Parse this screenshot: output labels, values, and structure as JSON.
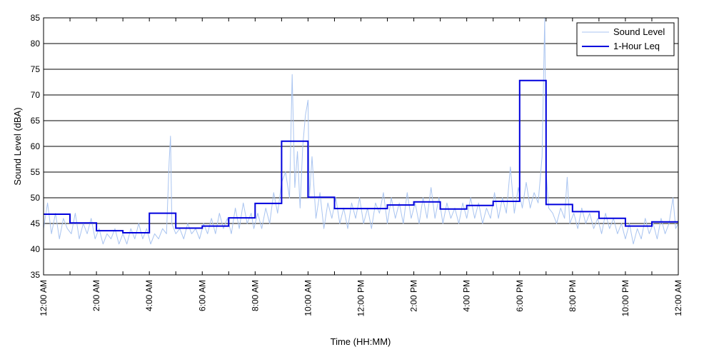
{
  "chart_data": {
    "type": "line",
    "xlabel": "Time (HH:MM)",
    "ylabel": "Sound Level (dBA)",
    "ylim": [
      35,
      85
    ],
    "yticks": [
      35,
      40,
      45,
      50,
      55,
      60,
      65,
      70,
      75,
      80,
      85
    ],
    "xlim_hours": [
      0,
      24
    ],
    "xtick_labels": [
      "12:00 AM",
      "2:00 AM",
      "4:00 AM",
      "6:00 AM",
      "8:00 AM",
      "10:00 AM",
      "12:00 PM",
      "2:00 PM",
      "4:00 PM",
      "6:00 PM",
      "8:00 PM",
      "10:00 PM",
      "12:00 AM"
    ],
    "grid": "horizontal",
    "legend_position": "top-right",
    "series": [
      {
        "name": "Sound Level",
        "color": "#a9c4f0",
        "style": "thin-line",
        "points": [
          [
            0.0,
            44
          ],
          [
            0.15,
            49
          ],
          [
            0.3,
            43
          ],
          [
            0.45,
            47
          ],
          [
            0.6,
            42
          ],
          [
            0.75,
            46
          ],
          [
            0.9,
            44
          ],
          [
            1.05,
            43
          ],
          [
            1.2,
            47
          ],
          [
            1.35,
            42
          ],
          [
            1.5,
            45
          ],
          [
            1.65,
            43
          ],
          [
            1.8,
            46
          ],
          [
            1.95,
            42
          ],
          [
            2.1,
            44
          ],
          [
            2.25,
            41
          ],
          [
            2.4,
            43
          ],
          [
            2.55,
            42
          ],
          [
            2.7,
            44
          ],
          [
            2.85,
            41
          ],
          [
            3.0,
            43
          ],
          [
            3.15,
            41
          ],
          [
            3.3,
            44
          ],
          [
            3.45,
            42
          ],
          [
            3.6,
            45
          ],
          [
            3.75,
            42
          ],
          [
            3.9,
            44
          ],
          [
            4.05,
            41
          ],
          [
            4.2,
            43
          ],
          [
            4.35,
            42
          ],
          [
            4.5,
            44
          ],
          [
            4.65,
            43
          ],
          [
            4.75,
            57
          ],
          [
            4.8,
            62
          ],
          [
            4.85,
            45
          ],
          [
            5.0,
            43
          ],
          [
            5.15,
            44
          ],
          [
            5.3,
            42
          ],
          [
            5.45,
            45
          ],
          [
            5.6,
            43
          ],
          [
            5.75,
            44
          ],
          [
            5.9,
            42
          ],
          [
            6.05,
            45
          ],
          [
            6.2,
            43
          ],
          [
            6.35,
            46
          ],
          [
            6.5,
            43
          ],
          [
            6.65,
            47
          ],
          [
            6.8,
            44
          ],
          [
            6.95,
            46
          ],
          [
            7.1,
            43
          ],
          [
            7.25,
            48
          ],
          [
            7.4,
            44
          ],
          [
            7.55,
            49
          ],
          [
            7.7,
            45
          ],
          [
            7.85,
            47
          ],
          [
            7.95,
            44
          ],
          [
            8.1,
            47
          ],
          [
            8.25,
            44
          ],
          [
            8.4,
            48
          ],
          [
            8.55,
            45
          ],
          [
            8.7,
            51
          ],
          [
            8.85,
            47
          ],
          [
            9.0,
            53
          ],
          [
            9.15,
            55
          ],
          [
            9.3,
            50
          ],
          [
            9.4,
            74
          ],
          [
            9.5,
            52
          ],
          [
            9.6,
            59
          ],
          [
            9.7,
            48
          ],
          [
            9.8,
            60
          ],
          [
            9.9,
            66
          ],
          [
            10.0,
            69
          ],
          [
            10.05,
            50
          ],
          [
            10.15,
            58
          ],
          [
            10.3,
            46
          ],
          [
            10.45,
            51
          ],
          [
            10.6,
            44
          ],
          [
            10.75,
            49
          ],
          [
            10.9,
            46
          ],
          [
            11.05,
            50
          ],
          [
            11.2,
            45
          ],
          [
            11.35,
            48
          ],
          [
            11.5,
            44
          ],
          [
            11.65,
            49
          ],
          [
            11.8,
            46
          ],
          [
            11.95,
            50
          ],
          [
            12.1,
            45
          ],
          [
            12.25,
            48
          ],
          [
            12.4,
            44
          ],
          [
            12.55,
            49
          ],
          [
            12.7,
            47
          ],
          [
            12.85,
            51
          ],
          [
            13.0,
            45
          ],
          [
            13.15,
            50
          ],
          [
            13.3,
            46
          ],
          [
            13.45,
            49
          ],
          [
            13.6,
            45
          ],
          [
            13.75,
            51
          ],
          [
            13.9,
            46
          ],
          [
            14.05,
            49
          ],
          [
            14.2,
            45
          ],
          [
            14.35,
            50
          ],
          [
            14.5,
            46
          ],
          [
            14.65,
            52
          ],
          [
            14.8,
            46
          ],
          [
            14.95,
            50
          ],
          [
            15.1,
            45
          ],
          [
            15.25,
            49
          ],
          [
            15.4,
            46
          ],
          [
            15.55,
            48
          ],
          [
            15.7,
            45
          ],
          [
            15.85,
            49
          ],
          [
            16.0,
            46
          ],
          [
            16.15,
            50
          ],
          [
            16.3,
            46
          ],
          [
            16.45,
            49
          ],
          [
            16.6,
            45
          ],
          [
            16.75,
            48
          ],
          [
            16.9,
            46
          ],
          [
            17.05,
            51
          ],
          [
            17.2,
            46
          ],
          [
            17.35,
            50
          ],
          [
            17.5,
            47
          ],
          [
            17.65,
            56
          ],
          [
            17.8,
            47
          ],
          [
            17.95,
            52
          ],
          [
            18.1,
            48
          ],
          [
            18.25,
            53
          ],
          [
            18.4,
            48
          ],
          [
            18.55,
            51
          ],
          [
            18.7,
            49
          ],
          [
            18.85,
            58
          ],
          [
            18.95,
            85
          ],
          [
            19.0,
            55
          ],
          [
            19.1,
            48
          ],
          [
            19.25,
            47
          ],
          [
            19.4,
            45
          ],
          [
            19.55,
            48
          ],
          [
            19.7,
            46
          ],
          [
            19.8,
            54
          ],
          [
            19.9,
            45
          ],
          [
            20.05,
            47
          ],
          [
            20.2,
            44
          ],
          [
            20.35,
            48
          ],
          [
            20.5,
            45
          ],
          [
            20.65,
            47
          ],
          [
            20.8,
            44
          ],
          [
            20.95,
            46
          ],
          [
            21.1,
            43
          ],
          [
            21.25,
            47
          ],
          [
            21.4,
            44
          ],
          [
            21.55,
            46
          ],
          [
            21.7,
            43
          ],
          [
            21.85,
            45
          ],
          [
            22.0,
            42
          ],
          [
            22.15,
            45
          ],
          [
            22.3,
            41
          ],
          [
            22.45,
            44
          ],
          [
            22.6,
            42
          ],
          [
            22.75,
            46
          ],
          [
            22.9,
            43
          ],
          [
            23.05,
            45
          ],
          [
            23.2,
            42
          ],
          [
            23.35,
            46
          ],
          [
            23.5,
            43
          ],
          [
            23.65,
            45
          ],
          [
            23.8,
            50
          ],
          [
            23.9,
            44
          ],
          [
            24.0,
            45
          ]
        ]
      },
      {
        "name": "1-Hour Leq",
        "color": "#0000dd",
        "style": "step",
        "hourly_values": [
          46.8,
          45.1,
          43.6,
          43.2,
          47.0,
          44.1,
          44.5,
          46.1,
          48.9,
          61.0,
          50.1,
          47.9,
          47.9,
          48.6,
          49.2,
          47.8,
          48.5,
          49.3,
          72.8,
          48.7,
          47.3,
          46.0,
          44.5,
          45.3
        ]
      }
    ]
  }
}
